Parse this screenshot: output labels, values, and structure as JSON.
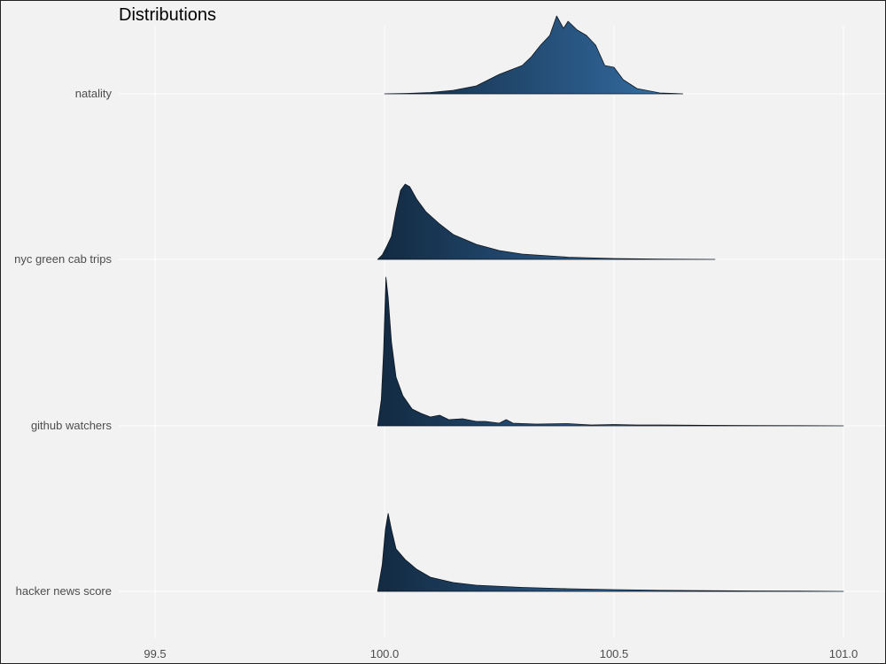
{
  "chart_data": {
    "type": "ridgeline",
    "title": "Distributions",
    "xlabel": "",
    "ylabel": "",
    "xlim": [
      99.42,
      101.08
    ],
    "x_ticks": [
      99.5,
      100.0,
      100.5,
      101.0
    ],
    "x_tick_labels": [
      "99.5",
      "100.0",
      "100.5",
      "101.0"
    ],
    "grid": true,
    "fill_gradient": {
      "low": "#132b43",
      "high": "#56b1f7"
    },
    "series": [
      {
        "name": "natality",
        "points": [
          [
            100.0,
            0.0
          ],
          [
            100.05,
            0.005
          ],
          [
            100.1,
            0.015
          ],
          [
            100.15,
            0.04
          ],
          [
            100.2,
            0.09
          ],
          [
            100.25,
            0.22
          ],
          [
            100.28,
            0.28
          ],
          [
            100.3,
            0.32
          ],
          [
            100.32,
            0.42
          ],
          [
            100.34,
            0.55
          ],
          [
            100.36,
            0.66
          ],
          [
            100.375,
            0.88
          ],
          [
            100.39,
            0.74
          ],
          [
            100.4,
            0.82
          ],
          [
            100.42,
            0.72
          ],
          [
            100.44,
            0.66
          ],
          [
            100.46,
            0.55
          ],
          [
            100.48,
            0.32
          ],
          [
            100.5,
            0.3
          ],
          [
            100.52,
            0.16
          ],
          [
            100.55,
            0.06
          ],
          [
            100.6,
            0.01
          ],
          [
            100.65,
            0.0
          ]
        ]
      },
      {
        "name": "nyc green cab trips",
        "points": [
          [
            99.985,
            0.0
          ],
          [
            99.995,
            0.05
          ],
          [
            100.005,
            0.15
          ],
          [
            100.015,
            0.26
          ],
          [
            100.025,
            0.55
          ],
          [
            100.035,
            0.78
          ],
          [
            100.045,
            0.85
          ],
          [
            100.055,
            0.82
          ],
          [
            100.07,
            0.68
          ],
          [
            100.09,
            0.54
          ],
          [
            100.12,
            0.4
          ],
          [
            100.15,
            0.28
          ],
          [
            100.2,
            0.17
          ],
          [
            100.25,
            0.1
          ],
          [
            100.3,
            0.06
          ],
          [
            100.4,
            0.025
          ],
          [
            100.5,
            0.01
          ],
          [
            100.6,
            0.003
          ],
          [
            100.72,
            0.0
          ]
        ]
      },
      {
        "name": "github watchers",
        "points": [
          [
            99.985,
            0.0
          ],
          [
            99.993,
            0.3
          ],
          [
            99.998,
            0.85
          ],
          [
            100.003,
            1.68
          ],
          [
            100.008,
            1.45
          ],
          [
            100.015,
            0.95
          ],
          [
            100.025,
            0.55
          ],
          [
            100.04,
            0.34
          ],
          [
            100.06,
            0.19
          ],
          [
            100.08,
            0.14
          ],
          [
            100.1,
            0.1
          ],
          [
            100.12,
            0.12
          ],
          [
            100.14,
            0.07
          ],
          [
            100.17,
            0.08
          ],
          [
            100.2,
            0.05
          ],
          [
            100.22,
            0.05
          ],
          [
            100.25,
            0.03
          ],
          [
            100.265,
            0.07
          ],
          [
            100.28,
            0.03
          ],
          [
            100.33,
            0.02
          ],
          [
            100.4,
            0.025
          ],
          [
            100.45,
            0.01
          ],
          [
            100.5,
            0.015
          ],
          [
            100.55,
            0.01
          ],
          [
            100.6,
            0.01
          ],
          [
            100.7,
            0.006
          ],
          [
            100.8,
            0.004
          ],
          [
            100.9,
            0.002
          ],
          [
            101.0,
            0.0
          ]
        ]
      },
      {
        "name": "hacker news score",
        "points": [
          [
            99.985,
            0.0
          ],
          [
            99.995,
            0.3
          ],
          [
            100.002,
            0.7
          ],
          [
            100.008,
            0.88
          ],
          [
            100.015,
            0.7
          ],
          [
            100.025,
            0.48
          ],
          [
            100.045,
            0.36
          ],
          [
            100.07,
            0.25
          ],
          [
            100.1,
            0.16
          ],
          [
            100.15,
            0.1
          ],
          [
            100.2,
            0.07
          ],
          [
            100.3,
            0.045
          ],
          [
            100.4,
            0.03
          ],
          [
            100.5,
            0.02
          ],
          [
            100.6,
            0.012
          ],
          [
            100.7,
            0.008
          ],
          [
            100.8,
            0.005
          ],
          [
            100.9,
            0.003
          ],
          [
            101.0,
            0.0
          ]
        ]
      }
    ]
  }
}
